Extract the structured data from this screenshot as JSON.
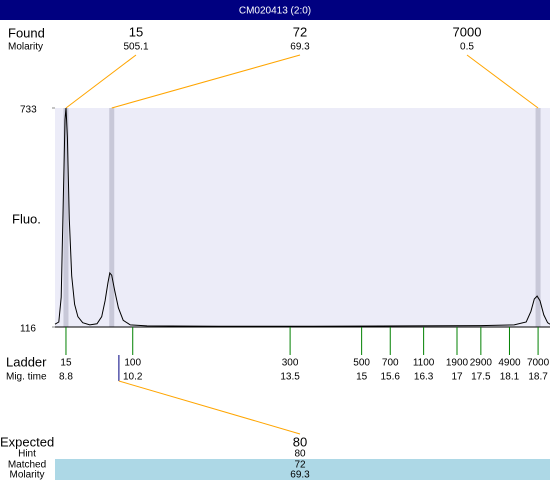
{
  "title": "CM020413 (2:0)",
  "chart_data": {
    "type": "line",
    "y_label": "Fluo.",
    "ylim": [
      116,
      733
    ],
    "yticks": [
      733,
      116
    ],
    "xlim": [
      8.57,
      18.95
    ],
    "color": "#000000",
    "x": [
      8.57,
      8.65,
      8.7,
      8.74,
      8.78,
      8.8,
      8.83,
      8.87,
      8.92,
      8.98,
      9.05,
      9.15,
      9.3,
      9.45,
      9.55,
      9.62,
      9.68,
      9.72,
      9.76,
      9.82,
      9.9,
      10.0,
      10.15,
      10.5,
      12,
      14,
      16,
      17.5,
      18.2,
      18.45,
      18.55,
      18.62,
      18.68,
      18.74,
      18.82,
      18.9,
      18.95
    ],
    "values": [
      124,
      130,
      200,
      450,
      700,
      733,
      650,
      420,
      260,
      180,
      145,
      128,
      122,
      125,
      145,
      190,
      240,
      268,
      262,
      220,
      170,
      135,
      122,
      119,
      118,
      118,
      119,
      120,
      122,
      130,
      160,
      195,
      203,
      190,
      150,
      128,
      124
    ],
    "found": {
      "label": "Found",
      "sub_label": "Molarity",
      "sizes": [
        15,
        72,
        7000
      ],
      "molarities": [
        505.1,
        69.3,
        0.5
      ],
      "mig_times": [
        8.8,
        9.76,
        18.7
      ]
    },
    "ladder": {
      "label": "Ladder",
      "sub_label": "Mig. time",
      "sizes": [
        15,
        100,
        300,
        500,
        700,
        1100,
        1900,
        2900,
        4900,
        7000
      ],
      "mig_times": [
        8.8,
        10.2,
        13.5,
        15,
        15.6,
        16.3,
        17,
        17.5,
        18.1,
        18.7
      ]
    },
    "expected": {
      "label": "Expected",
      "hint_label": "Hint",
      "matched_label": "Matched",
      "molarity_label": "Molarity",
      "size": 80,
      "hint": 80,
      "matched": 72,
      "molarity": 69.3,
      "mig_time": 9.91
    }
  }
}
